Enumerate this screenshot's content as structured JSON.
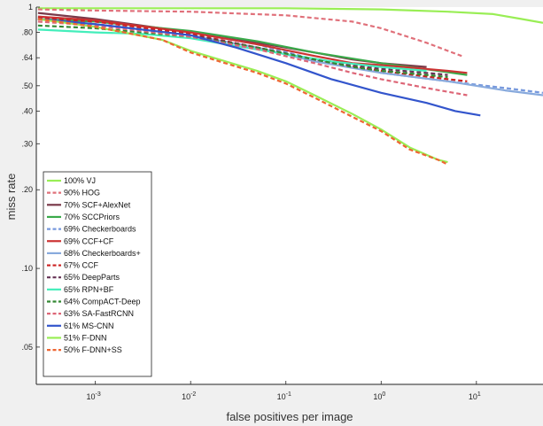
{
  "chart_data": {
    "type": "line",
    "title": "",
    "xlabel": "false positives per image",
    "ylabel": "miss rate",
    "x_scale": "log",
    "y_scale": "log",
    "xlim": [
      0.00024,
      50
    ],
    "ylim": [
      0.036,
      1
    ],
    "x_ticks": [
      {
        "value": 0.001,
        "base": "10",
        "exp": "-3"
      },
      {
        "value": 0.01,
        "base": "10",
        "exp": "-2"
      },
      {
        "value": 0.1,
        "base": "10",
        "exp": "-1"
      },
      {
        "value": 1,
        "base": "10",
        "exp": "0"
      },
      {
        "value": 10,
        "base": "10",
        "exp": "1"
      }
    ],
    "y_ticks": [
      {
        "value": 1,
        "label": "1"
      },
      {
        "value": 0.8,
        "label": ".80"
      },
      {
        "value": 0.64,
        "label": ".64"
      },
      {
        "value": 0.5,
        "label": ".50"
      },
      {
        "value": 0.4,
        "label": ".40"
      },
      {
        "value": 0.3,
        "label": ".30"
      },
      {
        "value": 0.2,
        "label": ".20"
      },
      {
        "value": 0.1,
        "label": ".10"
      },
      {
        "value": 0.05,
        "label": ".05"
      }
    ],
    "grid": false,
    "legend_position": "bottom-left",
    "series": [
      {
        "name": "100% VJ",
        "color": "#99ee55",
        "dash": false,
        "points": [
          [
            0.00025,
            0.99
          ],
          [
            0.001,
            0.99
          ],
          [
            0.01,
            0.99
          ],
          [
            0.1,
            0.99
          ],
          [
            1,
            0.98
          ],
          [
            5,
            0.96
          ],
          [
            15,
            0.94
          ],
          [
            30,
            0.9
          ],
          [
            50,
            0.87
          ]
        ]
      },
      {
        "name": "90% HOG",
        "color": "#e0707a",
        "dash": true,
        "points": [
          [
            0.00025,
            0.98
          ],
          [
            0.001,
            0.97
          ],
          [
            0.01,
            0.96
          ],
          [
            0.1,
            0.93
          ],
          [
            0.5,
            0.88
          ],
          [
            1,
            0.83
          ],
          [
            3,
            0.73
          ],
          [
            5,
            0.68
          ],
          [
            7,
            0.65
          ]
        ]
      },
      {
        "name": "70% SCF+AlexNet",
        "color": "#7a3a4a",
        "dash": false,
        "points": [
          [
            0.00025,
            0.95
          ],
          [
            0.001,
            0.9
          ],
          [
            0.01,
            0.8
          ],
          [
            0.05,
            0.73
          ],
          [
            0.2,
            0.67
          ],
          [
            0.5,
            0.63
          ],
          [
            1,
            0.61
          ],
          [
            3,
            0.59
          ]
        ]
      },
      {
        "name": "70% SCCPriors",
        "color": "#3aaa4a",
        "dash": false,
        "points": [
          [
            0.00025,
            0.9
          ],
          [
            0.001,
            0.88
          ],
          [
            0.01,
            0.81
          ],
          [
            0.05,
            0.74
          ],
          [
            0.2,
            0.67
          ],
          [
            1,
            0.61
          ],
          [
            4,
            0.57
          ],
          [
            8,
            0.55
          ]
        ]
      },
      {
        "name": "69% Checkerboards",
        "color": "#7799dd",
        "dash": true,
        "points": [
          [
            0.00025,
            0.92
          ],
          [
            0.001,
            0.88
          ],
          [
            0.01,
            0.8
          ],
          [
            0.05,
            0.72
          ],
          [
            0.2,
            0.63
          ],
          [
            1,
            0.56
          ],
          [
            5,
            0.52
          ],
          [
            20,
            0.49
          ],
          [
            50,
            0.47
          ]
        ]
      },
      {
        "name": "69% CCF+CF",
        "color": "#cc3333",
        "dash": false,
        "points": [
          [
            0.00025,
            0.92
          ],
          [
            0.001,
            0.89
          ],
          [
            0.01,
            0.8
          ],
          [
            0.05,
            0.72
          ],
          [
            0.2,
            0.65
          ],
          [
            0.5,
            0.61
          ],
          [
            1,
            0.6
          ],
          [
            5,
            0.57
          ],
          [
            8,
            0.56
          ]
        ]
      },
      {
        "name": "68% Checkerboards+",
        "color": "#88aadd",
        "dash": false,
        "points": [
          [
            0.00025,
            0.9
          ],
          [
            0.001,
            0.86
          ],
          [
            0.01,
            0.78
          ],
          [
            0.05,
            0.7
          ],
          [
            0.2,
            0.62
          ],
          [
            1,
            0.56
          ],
          [
            5,
            0.52
          ],
          [
            20,
            0.48
          ],
          [
            50,
            0.46
          ]
        ]
      },
      {
        "name": "67% CCF",
        "color": "#cc2222",
        "dash": true,
        "points": [
          [
            0.00025,
            0.91
          ],
          [
            0.001,
            0.88
          ],
          [
            0.01,
            0.79
          ],
          [
            0.05,
            0.7
          ],
          [
            0.2,
            0.63
          ],
          [
            1,
            0.57
          ],
          [
            5,
            0.53
          ],
          [
            8,
            0.52
          ]
        ]
      },
      {
        "name": "65% DeepParts",
        "color": "#663355",
        "dash": true,
        "points": [
          [
            0.00025,
            0.9
          ],
          [
            0.001,
            0.86
          ],
          [
            0.01,
            0.78
          ],
          [
            0.05,
            0.7
          ],
          [
            0.2,
            0.63
          ],
          [
            1,
            0.58
          ],
          [
            3,
            0.56
          ],
          [
            5,
            0.55
          ]
        ]
      },
      {
        "name": "65% RPN+BF",
        "color": "#44eebb",
        "dash": false,
        "points": [
          [
            0.00025,
            0.82
          ],
          [
            0.001,
            0.8
          ],
          [
            0.003,
            0.79
          ],
          [
            0.01,
            0.76
          ],
          [
            0.03,
            0.71
          ],
          [
            0.1,
            0.66
          ],
          [
            0.3,
            0.62
          ],
          [
            1,
            0.59
          ],
          [
            3,
            0.57
          ]
        ]
      },
      {
        "name": "64% CompACT-Deep",
        "color": "#338833",
        "dash": true,
        "points": [
          [
            0.00025,
            0.85
          ],
          [
            0.001,
            0.83
          ],
          [
            0.01,
            0.77
          ],
          [
            0.05,
            0.7
          ],
          [
            0.2,
            0.63
          ],
          [
            0.5,
            0.59
          ],
          [
            1,
            0.57
          ],
          [
            3,
            0.55
          ],
          [
            5,
            0.54
          ]
        ]
      },
      {
        "name": "63% SA-FastRCNN",
        "color": "#dd6677",
        "dash": true,
        "points": [
          [
            0.00025,
            0.88
          ],
          [
            0.001,
            0.85
          ],
          [
            0.01,
            0.77
          ],
          [
            0.05,
            0.69
          ],
          [
            0.2,
            0.61
          ],
          [
            0.5,
            0.56
          ],
          [
            1,
            0.53
          ],
          [
            3,
            0.49
          ],
          [
            8,
            0.46
          ]
        ]
      },
      {
        "name": "61% MS-CNN",
        "color": "#3355cc",
        "dash": false,
        "points": [
          [
            0.00025,
            0.9
          ],
          [
            0.001,
            0.86
          ],
          [
            0.01,
            0.78
          ],
          [
            0.03,
            0.7
          ],
          [
            0.1,
            0.61
          ],
          [
            0.3,
            0.53
          ],
          [
            1,
            0.47
          ],
          [
            3,
            0.43
          ],
          [
            6,
            0.4
          ],
          [
            11,
            0.385
          ]
        ]
      },
      {
        "name": "51% F-DNN",
        "color": "#99ee55",
        "dash": false,
        "points": [
          [
            0.00025,
            0.9
          ],
          [
            0.001,
            0.84
          ],
          [
            0.005,
            0.75
          ],
          [
            0.01,
            0.68
          ],
          [
            0.02,
            0.63
          ],
          [
            0.05,
            0.57
          ],
          [
            0.1,
            0.52
          ],
          [
            0.2,
            0.46
          ],
          [
            0.5,
            0.39
          ],
          [
            1,
            0.34
          ],
          [
            2,
            0.29
          ],
          [
            4,
            0.26
          ],
          [
            5,
            0.255
          ]
        ]
      },
      {
        "name": "50% F-DNN+SS",
        "color": "#ee6633",
        "dash": true,
        "points": [
          [
            0.00025,
            0.9
          ],
          [
            0.001,
            0.84
          ],
          [
            0.005,
            0.75
          ],
          [
            0.01,
            0.67
          ],
          [
            0.02,
            0.62
          ],
          [
            0.05,
            0.56
          ],
          [
            0.1,
            0.51
          ],
          [
            0.2,
            0.45
          ],
          [
            0.5,
            0.38
          ],
          [
            1,
            0.335
          ],
          [
            2,
            0.285
          ],
          [
            4,
            0.26
          ],
          [
            5,
            0.25
          ]
        ]
      }
    ]
  }
}
